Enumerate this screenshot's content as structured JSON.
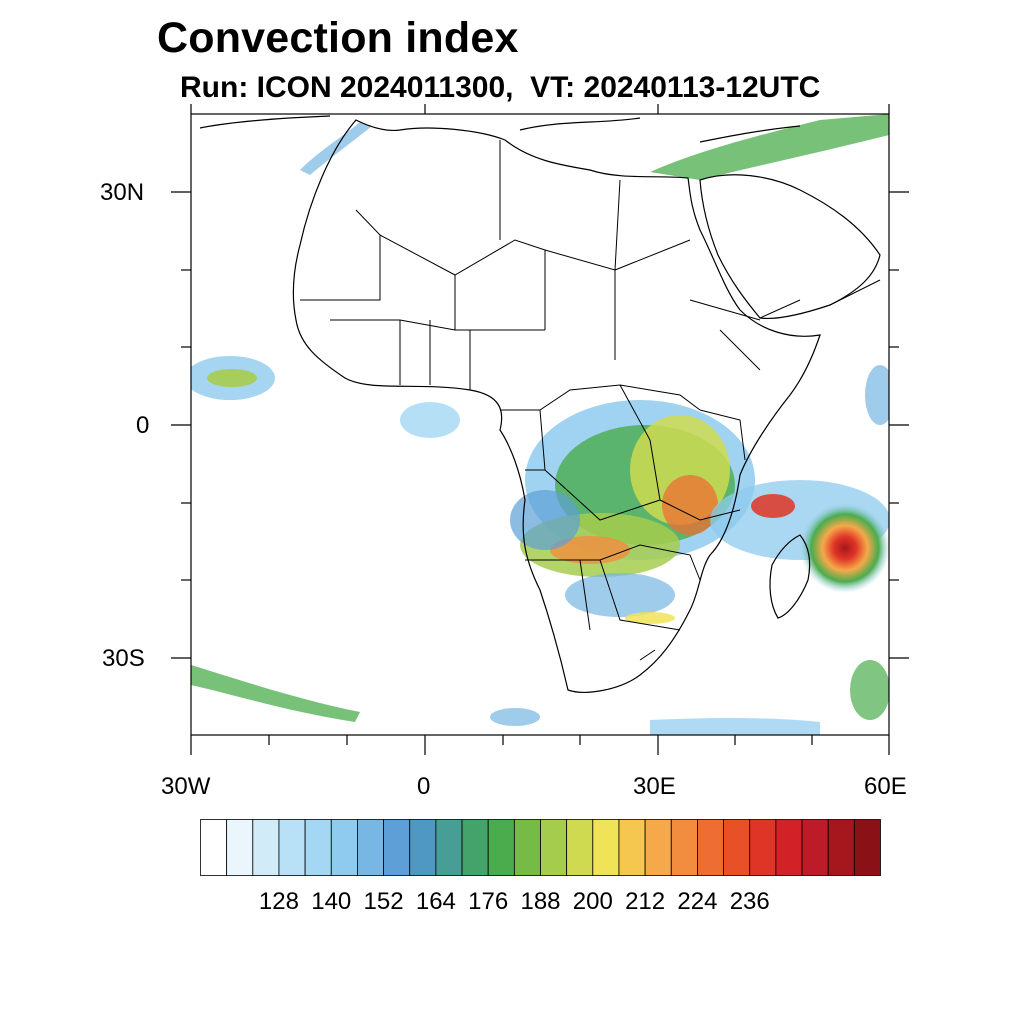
{
  "title": "Convection index",
  "subtitle": "Run: ICON 2024011300,  VT: 20240113-12UTC",
  "axes": {
    "lat_labels": [
      "30N",
      "0",
      "30S"
    ],
    "lon_labels": [
      "30W",
      "0",
      "30E",
      "60E"
    ]
  },
  "colorbar": {
    "labels": [
      "128",
      "140",
      "152",
      "164",
      "176",
      "188",
      "200",
      "212",
      "224",
      "236"
    ],
    "colors": [
      "#ffffff",
      "#eaf5fc",
      "#d2ebf9",
      "#b8e0f6",
      "#a3d7f3",
      "#8ecbee",
      "#78b6e3",
      "#5d9fd6",
      "#4f98c4",
      "#479e95",
      "#44a36b",
      "#4aac4c",
      "#75bb45",
      "#a6cc4e",
      "#cfda50",
      "#f0e357",
      "#f6c74f",
      "#f5a94a",
      "#f28c3f",
      "#ee6d32",
      "#e85028",
      "#df3526",
      "#d22227",
      "#bd1b27",
      "#a6161d",
      "#8a1216"
    ]
  },
  "map": {
    "region": "Africa",
    "lon_range": [
      -30,
      60
    ],
    "lat_range": [
      -40,
      40
    ]
  }
}
